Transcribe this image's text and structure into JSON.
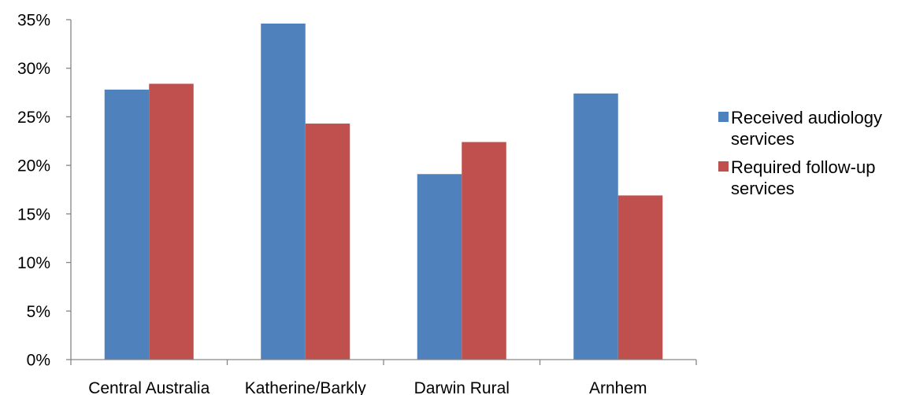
{
  "chart_data": {
    "type": "bar",
    "categories": [
      "Central Australia",
      "Katherine/Barkly",
      "Darwin Rural",
      "Arnhem"
    ],
    "series": [
      {
        "name": "Received audiology services",
        "legend_lines": [
          "Received audiology",
          "services"
        ],
        "color": "#4F81BD",
        "values": [
          27.8,
          34.6,
          19.1,
          27.4
        ]
      },
      {
        "name": "Required follow-up services",
        "legend_lines": [
          "Required follow-up",
          "services"
        ],
        "color": "#C0504D",
        "values": [
          28.4,
          24.3,
          22.4,
          16.9
        ]
      }
    ],
    "ylim": [
      0,
      35
    ],
    "yticks": [
      0,
      5,
      10,
      15,
      20,
      25,
      30,
      35
    ],
    "ytick_labels": [
      "0%",
      "5%",
      "10%",
      "15%",
      "20%",
      "25%",
      "30%",
      "35%"
    ],
    "title": "",
    "xlabel": "",
    "ylabel": "",
    "grid": false,
    "legend_position": "right"
  }
}
